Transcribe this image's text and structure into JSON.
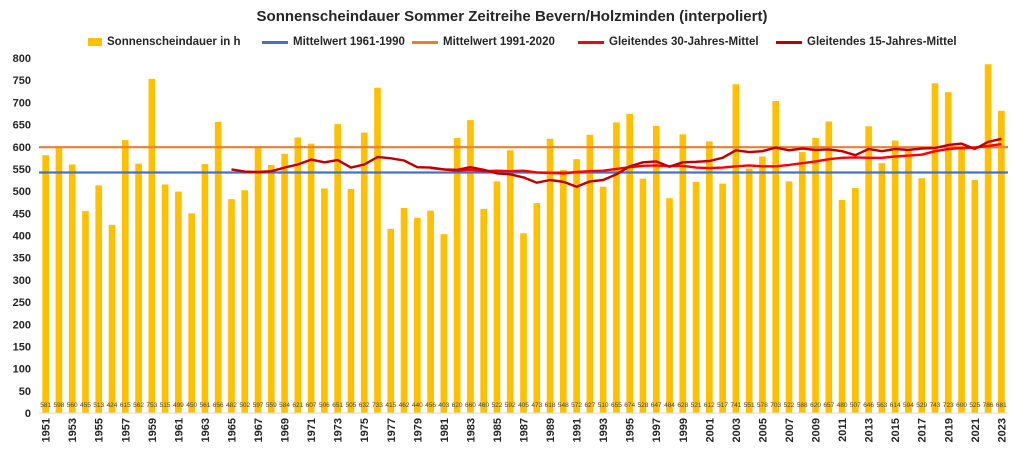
{
  "chart_data": {
    "type": "bar",
    "title": "Sonnenscheindauer Sommer Zeitreihe Bevern/Holzminden (interpoliert)",
    "xlabel": "",
    "ylabel": "",
    "ylim": [
      0,
      800
    ],
    "y_ticks": [
      0,
      50,
      100,
      150,
      200,
      250,
      300,
      350,
      400,
      450,
      500,
      550,
      600,
      650,
      700,
      750,
      800
    ],
    "grid": false,
    "legend_position": "top",
    "colors": {
      "bars": "#FFC000",
      "mean_1961_1990": "#4472C4",
      "mean_1991_2020": "#ED7D31",
      "moving_30": "#FF0000",
      "moving_15": "#C00000"
    },
    "categories": [
      1951,
      1952,
      1953,
      1954,
      1955,
      1956,
      1957,
      1958,
      1959,
      1960,
      1961,
      1962,
      1963,
      1964,
      1965,
      1966,
      1967,
      1968,
      1969,
      1970,
      1971,
      1972,
      1973,
      1974,
      1975,
      1976,
      1977,
      1978,
      1979,
      1980,
      1981,
      1982,
      1983,
      1984,
      1985,
      1986,
      1987,
      1988,
      1989,
      1990,
      1991,
      1992,
      1993,
      1994,
      1995,
      1996,
      1997,
      1998,
      1999,
      2000,
      2001,
      2002,
      2003,
      2004,
      2005,
      2006,
      2007,
      2008,
      2009,
      2010,
      2011,
      2012,
      2013,
      2014,
      2015,
      2016,
      2017,
      2018,
      2019,
      2020,
      2021,
      2022,
      2023
    ],
    "x_tick_labels": [
      "1951",
      "1953",
      "1955",
      "1957",
      "1959",
      "1961",
      "1963",
      "1965",
      "1967",
      "1969",
      "1971",
      "1973",
      "1975",
      "1977",
      "1979",
      "1981",
      "1983",
      "1985",
      "1987",
      "1989",
      "1991",
      "1993",
      "1995",
      "1997",
      "1999",
      "2001",
      "2003",
      "2005",
      "2007",
      "2009",
      "2011",
      "2013",
      "2015",
      "2017",
      "2019",
      "2021",
      "2023"
    ],
    "series": [
      {
        "name": "Sonnenscheindauer in h",
        "type": "bar",
        "values": [
          581,
          598,
          560,
          455,
          513,
          424,
          615,
          562,
          753,
          515,
          499,
          450,
          561,
          656,
          482,
          502,
          597,
          559,
          584,
          621,
          607,
          506,
          651,
          505,
          632,
          733,
          415,
          462,
          440,
          456,
          403,
          620,
          660,
          460,
          522,
          592,
          405,
          473,
          618,
          548,
          572,
          627,
          510,
          655,
          674,
          528,
          647,
          484,
          628,
          521,
          612,
          517,
          741,
          551,
          578,
          703,
          522,
          588,
          620,
          657,
          480,
          507,
          646,
          563,
          614,
          594,
          529,
          743,
          723,
          600,
          525,
          786,
          681
        ]
      },
      {
        "name": "Mittelwert 1961-1990",
        "type": "hline",
        "value": 542
      },
      {
        "name": "Mittelwert 1991-2020",
        "type": "hline",
        "value": 599
      },
      {
        "name": "Gleitendes 30-Jahres-Mittel",
        "type": "line",
        "x": [
          1980,
          1981,
          1982,
          1983,
          1984,
          1985,
          1986,
          1987,
          1988,
          1989,
          1990,
          1991,
          1992,
          1993,
          1994,
          1995,
          1996,
          1997,
          1998,
          1999,
          2000,
          2001,
          2002,
          2003,
          2004,
          2005,
          2006,
          2007,
          2008,
          2009,
          2010,
          2011,
          2012,
          2013,
          2014,
          2015,
          2016,
          2017,
          2018,
          2019,
          2020,
          2021,
          2022,
          2023
        ],
        "values": [
          552,
          549,
          546,
          548,
          545,
          546,
          545,
          546,
          542,
          541,
          540,
          543,
          545,
          546,
          550,
          554,
          557,
          558,
          556,
          557,
          553,
          552,
          553,
          556,
          558,
          556,
          556,
          559,
          563,
          567,
          572,
          575,
          576,
          575,
          575,
          578,
          580,
          582,
          590,
          595,
          597,
          598,
          602,
          606
        ]
      },
      {
        "name": "Gleitendes 15-Jahres-Mittel",
        "type": "line",
        "x": [
          1965,
          1966,
          1967,
          1968,
          1969,
          1970,
          1971,
          1972,
          1973,
          1974,
          1975,
          1976,
          1977,
          1978,
          1979,
          1980,
          1981,
          1982,
          1983,
          1984,
          1985,
          1986,
          1987,
          1988,
          1989,
          1990,
          1991,
          1992,
          1993,
          1994,
          1995,
          1996,
          1997,
          1998,
          1999,
          2000,
          2001,
          2002,
          2003,
          2004,
          2005,
          2006,
          2007,
          2008,
          2009,
          2010,
          2011,
          2012,
          2013,
          2014,
          2015,
          2016,
          2017,
          2018,
          2019,
          2020,
          2021,
          2022,
          2023
        ],
        "values": [
          549,
          544,
          543,
          545,
          553,
          560,
          571,
          565,
          570,
          553,
          560,
          577,
          574,
          569,
          554,
          553,
          549,
          548,
          554,
          548,
          540,
          538,
          531,
          519,
          525,
          521,
          510,
          522,
          525,
          538,
          556,
          565,
          567,
          555,
          565,
          566,
          568,
          575,
          592,
          588,
          590,
          598,
          592,
          596,
          593,
          594,
          590,
          581,
          595,
          590,
          595,
          593,
          596,
          597,
          604,
          607,
          595,
          611,
          618
        ]
      }
    ]
  }
}
